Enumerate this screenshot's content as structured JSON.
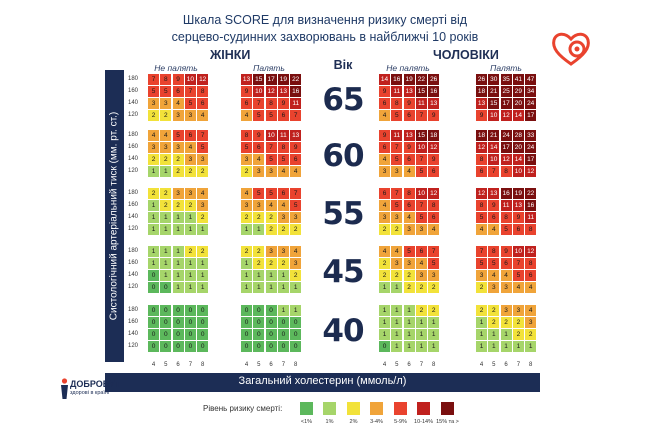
{
  "title_line1": "Шкала SCORE для визначення ризику смерті від",
  "title_line2": "серцево-судинних захворювань в найближчі 10 років",
  "women_label": "ЖІНКИ",
  "men_label": "ЧОЛОВІКИ",
  "sub_nonsmoker": "Не палять",
  "sub_smoker": "Палять",
  "age_label": "Вік",
  "y_axis_title": "Систологічний артеріальний тиск (мм. рт. ст.)",
  "x_axis_title": "Загальний холестерин (ммоль/л)",
  "legend_title": "Рівень ризику смерті:",
  "logo_name": "ДОБРОБУТ",
  "logo_tagline": "здорові в країні",
  "colors": {
    "c1": "#5cb85c",
    "c2": "#a6d56a",
    "c3": "#f2e23a",
    "c4": "#f0a43a",
    "c5": "#e9432e",
    "c6": "#c0211e",
    "c7": "#7a0f0f",
    "axis_bar": "#1c2d55"
  },
  "chart_data": {
    "type": "heatmap",
    "title": "Шкала SCORE для визначення ризику смерті від серцево-судинних захворювань в найближчі 10 років",
    "xlabel": "Загальний холестерин (ммоль/л)",
    "ylabel": "Систологічний артеріальний тиск (мм. рт. ст.)",
    "cholesterol_ticks": [
      "4",
      "5",
      "6",
      "7",
      "8"
    ],
    "bp_ticks": [
      "180",
      "160",
      "140",
      "120"
    ],
    "ages": [
      "65",
      "60",
      "55",
      "45",
      "40"
    ],
    "groups": [
      {
        "sex": "ЖІНКИ",
        "smoking": "Не палять",
        "values": [
          [
            [
              7,
              8,
              9,
              10,
              12
            ],
            [
              5,
              5,
              6,
              7,
              8
            ],
            [
              3,
              3,
              4,
              5,
              6
            ],
            [
              2,
              2,
              3,
              3,
              4
            ]
          ],
          [
            [
              4,
              4,
              5,
              6,
              7
            ],
            [
              3,
              3,
              3,
              4,
              5
            ],
            [
              2,
              2,
              2,
              3,
              3
            ],
            [
              1,
              1,
              2,
              2,
              2
            ]
          ],
          [
            [
              2,
              2,
              3,
              3,
              4
            ],
            [
              1,
              2,
              2,
              2,
              3
            ],
            [
              1,
              1,
              1,
              1,
              2
            ],
            [
              1,
              1,
              1,
              1,
              1
            ]
          ],
          [
            [
              1,
              1,
              1,
              2,
              2
            ],
            [
              1,
              1,
              1,
              1,
              1
            ],
            [
              0,
              1,
              1,
              1,
              1
            ],
            [
              0,
              0,
              1,
              1,
              1
            ]
          ],
          [
            [
              0,
              0,
              0,
              0,
              0
            ],
            [
              0,
              0,
              0,
              0,
              0
            ],
            [
              0,
              0,
              0,
              0,
              0
            ],
            [
              0,
              0,
              0,
              0,
              0
            ]
          ]
        ]
      },
      {
        "sex": "ЖІНКИ",
        "smoking": "Палять",
        "values": [
          [
            [
              13,
              15,
              17,
              19,
              22
            ],
            [
              9,
              10,
              12,
              13,
              16
            ],
            [
              6,
              7,
              8,
              9,
              11
            ],
            [
              4,
              5,
              5,
              6,
              7
            ]
          ],
          [
            [
              8,
              9,
              10,
              11,
              13
            ],
            [
              5,
              6,
              7,
              8,
              9
            ],
            [
              3,
              4,
              5,
              5,
              6
            ],
            [
              2,
              3,
              3,
              4,
              4
            ]
          ],
          [
            [
              4,
              5,
              5,
              6,
              7
            ],
            [
              3,
              3,
              4,
              4,
              5
            ],
            [
              2,
              2,
              2,
              3,
              3
            ],
            [
              1,
              1,
              2,
              2,
              2
            ]
          ],
          [
            [
              2,
              2,
              3,
              3,
              4
            ],
            [
              1,
              2,
              2,
              2,
              3
            ],
            [
              1,
              1,
              1,
              1,
              2
            ],
            [
              1,
              1,
              1,
              1,
              1
            ]
          ],
          [
            [
              0,
              0,
              0,
              1,
              1
            ],
            [
              0,
              0,
              0,
              0,
              0
            ],
            [
              0,
              0,
              0,
              0,
              0
            ],
            [
              0,
              0,
              0,
              0,
              0
            ]
          ]
        ]
      },
      {
        "sex": "ЧОЛОВІКИ",
        "smoking": "Не палять",
        "values": [
          [
            [
              14,
              16,
              19,
              22,
              26
            ],
            [
              9,
              11,
              13,
              15,
              16
            ],
            [
              6,
              8,
              9,
              11,
              13
            ],
            [
              4,
              5,
              6,
              7,
              9
            ]
          ],
          [
            [
              9,
              11,
              13,
              15,
              18
            ],
            [
              6,
              7,
              9,
              10,
              12
            ],
            [
              4,
              5,
              6,
              7,
              9
            ],
            [
              3,
              3,
              4,
              5,
              6
            ]
          ],
          [
            [
              6,
              7,
              8,
              10,
              12
            ],
            [
              4,
              5,
              6,
              7,
              8
            ],
            [
              3,
              3,
              4,
              5,
              6
            ],
            [
              2,
              2,
              3,
              3,
              4
            ]
          ],
          [
            [
              4,
              4,
              5,
              6,
              7
            ],
            [
              2,
              3,
              3,
              4,
              5
            ],
            [
              2,
              2,
              2,
              3,
              3
            ],
            [
              1,
              1,
              2,
              2,
              2
            ]
          ],
          [
            [
              1,
              1,
              1,
              2,
              2
            ],
            [
              1,
              1,
              1,
              1,
              1
            ],
            [
              1,
              1,
              1,
              1,
              1
            ],
            [
              0,
              1,
              1,
              1,
              1
            ]
          ]
        ]
      },
      {
        "sex": "ЧОЛОВІКИ",
        "smoking": "Палять",
        "values": [
          [
            [
              26,
              30,
              35,
              41,
              47
            ],
            [
              18,
              21,
              25,
              29,
              34
            ],
            [
              13,
              15,
              17,
              20,
              24
            ],
            [
              9,
              10,
              12,
              14,
              17
            ]
          ],
          [
            [
              18,
              21,
              24,
              28,
              33
            ],
            [
              12,
              14,
              17,
              20,
              24
            ],
            [
              8,
              10,
              12,
              14,
              17
            ],
            [
              6,
              7,
              8,
              10,
              12
            ]
          ],
          [
            [
              12,
              13,
              16,
              19,
              22
            ],
            [
              8,
              9,
              11,
              13,
              16
            ],
            [
              5,
              6,
              8,
              9,
              11
            ],
            [
              4,
              4,
              5,
              6,
              8
            ]
          ],
          [
            [
              7,
              8,
              9,
              10,
              12
            ],
            [
              5,
              5,
              6,
              7,
              8
            ],
            [
              3,
              4,
              4,
              5,
              6
            ],
            [
              2,
              3,
              3,
              4,
              4
            ]
          ],
          [
            [
              2,
              2,
              3,
              3,
              4
            ],
            [
              1,
              2,
              2,
              2,
              3
            ],
            [
              1,
              1,
              1,
              2,
              2
            ],
            [
              1,
              1,
              1,
              1,
              1
            ]
          ]
        ]
      }
    ],
    "legend": [
      {
        "label": "<1%",
        "color": "#5cb85c"
      },
      {
        "label": "1%",
        "color": "#a6d56a"
      },
      {
        "label": "2%",
        "color": "#f2e23a"
      },
      {
        "label": "3-4%",
        "color": "#f0a43a"
      },
      {
        "label": "5-9%",
        "color": "#e9432e"
      },
      {
        "label": "10-14%",
        "color": "#c0211e"
      },
      {
        "label": "15% та >",
        "color": "#7a0f0f"
      }
    ]
  }
}
